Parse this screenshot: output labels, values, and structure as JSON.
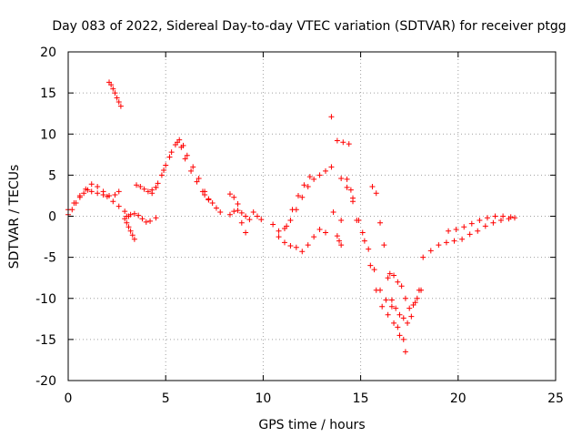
{
  "chart_data": {
    "type": "scatter",
    "title": "Day 083 of 2022, Sidereal Day-to-day VTEC variation (SDTVAR) for receiver ptgg",
    "xlabel": "GPS time / hours",
    "ylabel": "SDTVAR / TECUs",
    "xlim": [
      0,
      25
    ],
    "ylim": [
      -20,
      20
    ],
    "xticks": [
      0,
      5,
      10,
      15,
      20,
      25
    ],
    "xtick_labels": [
      "0",
      "5",
      "10",
      "15",
      "20",
      "25"
    ],
    "yticks": [
      -20,
      -15,
      -10,
      -5,
      0,
      5,
      10,
      15,
      20
    ],
    "ytick_labels": [
      "-20",
      "-15",
      "-10",
      "-5",
      "0",
      "5",
      "10",
      "15",
      "20"
    ],
    "grid": true,
    "marker": "+",
    "color": "#ff0000",
    "segments": [
      {
        "name": "seg-a1",
        "x": [
          0.0,
          0.2,
          0.4,
          0.6,
          0.8,
          1.0,
          1.2,
          1.5,
          1.8,
          2.1,
          2.4,
          2.6
        ],
        "y": [
          0.2,
          0.8,
          1.6,
          2.3,
          2.8,
          3.2,
          3.0,
          2.8,
          2.6,
          2.5,
          2.6,
          3.0
        ]
      },
      {
        "name": "seg-a2",
        "x": [
          0.0,
          0.3,
          0.6,
          0.9,
          1.2,
          1.5,
          1.8,
          2.0,
          2.3,
          2.6,
          2.9,
          3.1
        ],
        "y": [
          0.8,
          1.6,
          2.5,
          3.3,
          3.9,
          3.6,
          3.0,
          2.4,
          1.8,
          1.2,
          0.6,
          0.0
        ]
      },
      {
        "name": "seg-a3",
        "x": [
          2.9,
          3.0,
          3.1,
          3.2,
          3.3,
          3.4
        ],
        "y": [
          -0.3,
          -0.8,
          -1.3,
          -1.8,
          -2.3,
          -2.8
        ]
      },
      {
        "name": "seg-b",
        "x": [
          2.1,
          2.2,
          2.3,
          2.4,
          2.5,
          2.6,
          2.7
        ],
        "y": [
          16.3,
          16.0,
          15.5,
          15.0,
          14.4,
          13.9,
          13.4
        ]
      },
      {
        "name": "seg-c",
        "x": [
          3.0,
          3.2,
          3.4,
          3.6,
          3.8,
          4.0,
          4.2,
          4.5
        ],
        "y": [
          0.0,
          0.2,
          0.3,
          0.1,
          -0.3,
          -0.7,
          -0.6,
          -0.2
        ]
      },
      {
        "name": "seg-c2",
        "x": [
          3.5,
          3.7,
          3.9,
          4.1,
          4.3,
          4.5
        ],
        "y": [
          3.8,
          3.6,
          3.3,
          3.0,
          3.2,
          3.5
        ]
      },
      {
        "name": "seg-d1",
        "x": [
          4.3,
          4.6,
          4.9,
          5.2,
          5.5,
          5.7,
          5.9,
          6.1,
          6.4,
          6.7,
          7.0,
          7.2
        ],
        "y": [
          2.8,
          4.0,
          5.6,
          7.2,
          8.7,
          9.3,
          8.6,
          7.4,
          6.0,
          4.6,
          3.0,
          2.0
        ]
      },
      {
        "name": "seg-d2",
        "x": [
          4.5,
          4.8,
          5.0,
          5.3,
          5.6,
          5.8,
          6.0,
          6.3,
          6.6,
          6.9
        ],
        "y": [
          3.5,
          5.0,
          6.2,
          7.8,
          9.0,
          8.4,
          7.0,
          5.5,
          4.2,
          3.0
        ]
      },
      {
        "name": "seg-e",
        "x": [
          7.0,
          7.2,
          7.4,
          7.6,
          7.8
        ],
        "y": [
          2.6,
          2.1,
          1.6,
          1.0,
          0.5
        ]
      },
      {
        "name": "seg-f",
        "x": [
          8.3,
          8.5,
          8.7,
          8.9,
          9.1,
          9.3,
          9.5,
          9.7,
          9.9
        ],
        "y": [
          0.2,
          0.6,
          0.7,
          0.4,
          0.0,
          -0.4,
          0.5,
          0.0,
          -0.4
        ]
      },
      {
        "name": "seg-f2",
        "x": [
          8.3,
          8.5,
          8.7,
          8.9,
          9.1
        ],
        "y": [
          2.7,
          2.3,
          1.5,
          -0.8,
          -2.0
        ]
      },
      {
        "name": "seg-g1",
        "x": [
          10.5,
          10.8,
          11.1,
          11.4,
          11.7,
          12.0,
          12.3,
          12.6,
          12.9,
          13.2,
          13.5
        ],
        "y": [
          -1.0,
          -1.8,
          -1.5,
          -0.5,
          0.8,
          2.3,
          3.6,
          4.5,
          5.0,
          5.5,
          6.0
        ]
      },
      {
        "name": "seg-g2",
        "x": [
          10.8,
          11.1,
          11.4,
          11.7,
          12.0,
          12.3,
          12.6,
          12.9
        ],
        "y": [
          -2.5,
          -3.2,
          -3.6,
          -3.8,
          -4.3,
          -3.5,
          -2.5,
          -1.6
        ]
      },
      {
        "name": "seg-g3",
        "x": [
          11.2,
          11.5,
          11.8,
          12.1,
          12.4
        ],
        "y": [
          -1.2,
          0.8,
          2.5,
          3.8,
          4.8
        ]
      },
      {
        "name": "seg-h",
        "x": [
          13.5,
          13.8,
          14.1,
          14.4,
          13.6,
          14.0,
          13.2,
          13.9,
          14.3,
          14.5,
          13.8,
          14.0,
          14.6
        ],
        "y": [
          12.1,
          9.2,
          9.0,
          8.8,
          0.5,
          -0.5,
          -2.0,
          -3.0,
          4.5,
          3.2,
          -2.4,
          -3.5,
          2.2
        ]
      },
      {
        "name": "seg-i1",
        "x": [
          14.0,
          14.3,
          14.6,
          14.9,
          15.2,
          15.5,
          15.8,
          16.1,
          16.4,
          16.7,
          17.0,
          17.3
        ],
        "y": [
          4.6,
          3.5,
          1.8,
          -0.5,
          -3.0,
          -6.0,
          -9.0,
          -11.0,
          -12.0,
          -13.0,
          -14.5,
          -16.5
        ]
      },
      {
        "name": "seg-i2",
        "x": [
          14.8,
          15.1,
          15.4,
          15.7,
          16.0,
          16.3,
          16.6,
          16.9,
          17.2
        ],
        "y": [
          -0.5,
          -2.0,
          -4.0,
          -6.5,
          -9.0,
          -10.2,
          -11.0,
          -13.5,
          -15.0
        ]
      },
      {
        "name": "seg-i3",
        "x": [
          16.5,
          16.7,
          16.9,
          17.1,
          17.3,
          17.5,
          17.7,
          17.9,
          18.1
        ],
        "y": [
          -7.0,
          -7.2,
          -8.0,
          -8.5,
          -10.0,
          -11.2,
          -10.8,
          -10.0,
          -9.0
        ]
      },
      {
        "name": "seg-i4",
        "x": [
          15.6,
          15.8,
          16.0,
          16.2,
          16.4,
          16.6,
          16.8,
          17.0,
          17.2,
          17.4,
          17.6,
          17.8,
          18.0
        ],
        "y": [
          3.6,
          2.8,
          -0.8,
          -3.5,
          -7.5,
          -10.2,
          -11.2,
          -12.0,
          -12.4,
          -13.0,
          -12.2,
          -10.5,
          -9.0
        ]
      },
      {
        "name": "seg-j1",
        "x": [
          18.2,
          18.6,
          19.0,
          19.4,
          19.8,
          20.2,
          20.6,
          21.0,
          21.4,
          21.8,
          22.2,
          22.6,
          22.9
        ],
        "y": [
          -5.0,
          -4.2,
          -3.5,
          -3.2,
          -3.0,
          -2.8,
          -2.2,
          -1.8,
          -1.2,
          -0.8,
          -0.5,
          -0.3,
          -0.2
        ]
      },
      {
        "name": "seg-j2",
        "x": [
          19.5,
          19.9,
          20.3,
          20.7,
          21.1,
          21.5,
          21.9,
          22.3,
          22.7
        ],
        "y": [
          -1.8,
          -1.6,
          -1.3,
          -0.9,
          -0.5,
          -0.2,
          0.0,
          0.0,
          -0.1
        ]
      }
    ]
  }
}
